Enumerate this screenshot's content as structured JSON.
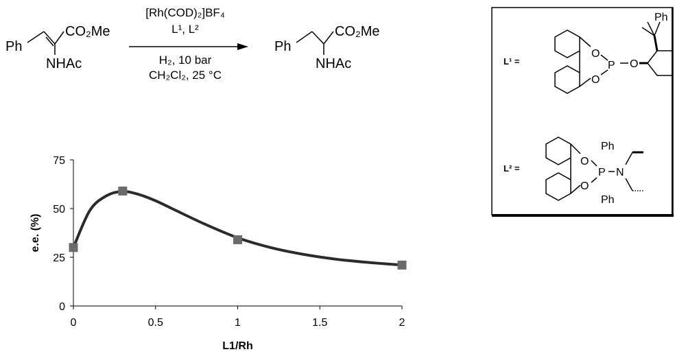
{
  "scheme": {
    "reactant": {
      "left_group": "Ph",
      "ester": "CO₂Me",
      "amide": "NHAc"
    },
    "conditions_above": [
      "[Rh(COD)₂]BF₄",
      "L¹, L²"
    ],
    "conditions_below": [
      "H₂, 10 bar",
      "CH₂Cl₂, 25 °C"
    ],
    "product": {
      "left_group": "Ph",
      "ester": "CO₂Me",
      "amide": "NHAc"
    }
  },
  "ligands": {
    "l1": {
      "label": "L¹ =",
      "atoms": {
        "p": "P",
        "o1": "O",
        "o2": "O",
        "o3": "O",
        "ph": "Ph"
      }
    },
    "l2": {
      "label": "L² =",
      "atoms": {
        "p": "P",
        "n": "N",
        "o1": "O",
        "o2": "O",
        "ph1": "Ph",
        "ph2": "Ph"
      }
    }
  },
  "chart_data": {
    "type": "scatter",
    "x": [
      0,
      0.3,
      1,
      2
    ],
    "y": [
      30,
      59,
      34,
      21
    ],
    "curve": {
      "x": [
        0,
        0.1,
        0.2,
        0.3,
        0.4,
        0.5,
        0.6,
        0.8,
        1.0,
        1.2,
        1.4,
        1.6,
        1.8,
        2.0
      ],
      "y": [
        30,
        49,
        56.5,
        58.8,
        57.2,
        54,
        50,
        42,
        35,
        30,
        26.5,
        24,
        22.3,
        21
      ]
    },
    "xlabel": "L1/Rh",
    "ylabel": "e.e. (%)",
    "xlim": [
      0,
      2
    ],
    "ylim": [
      0,
      75
    ],
    "xticks": [
      "0",
      "0.5",
      "1",
      "1.5",
      "2"
    ],
    "yticks": [
      "0",
      "25",
      "50",
      "75"
    ],
    "marker_color": "#6b6b6b",
    "line_color": "#2b2b2b",
    "grid": false
  }
}
